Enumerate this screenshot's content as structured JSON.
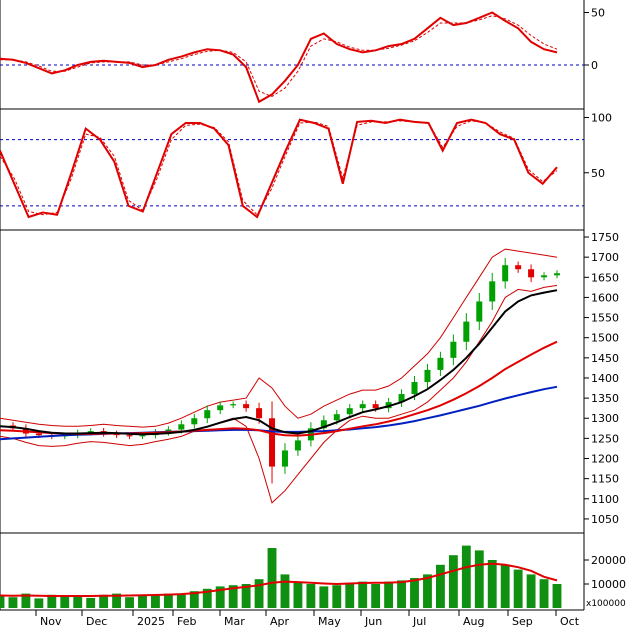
{
  "colors": {
    "price_up": "#00a000",
    "price_down": "#e00000",
    "bollinger": "#d00000",
    "ma20": "#000000",
    "ma50": "#e00000",
    "ma100": "#0020c0",
    "macd": "#e00000",
    "signal": "#e00000",
    "ref_line": "#0000c0",
    "volume": "#109010",
    "volume_ma": "#e00000"
  },
  "chart_data": [
    {
      "type": "line",
      "panel": "macd",
      "ylim": [
        -40,
        60
      ],
      "y_ticks": [
        0,
        50
      ],
      "reference_lines": [
        0
      ],
      "series": [
        {
          "values": [
            6,
            5,
            2,
            -3,
            -8,
            -5,
            0,
            3,
            4,
            3,
            2,
            -2,
            0,
            5,
            8,
            12,
            15,
            14,
            10,
            -2,
            -35,
            -28,
            -15,
            0,
            25,
            30,
            20,
            15,
            12,
            14,
            18,
            20,
            25,
            35,
            45,
            38,
            40,
            45,
            50,
            42,
            35,
            22,
            15,
            12
          ]
        },
        {
          "values": [
            5,
            5,
            3,
            -1,
            -6,
            -6,
            -2,
            2,
            3,
            3,
            3,
            0,
            0,
            3,
            6,
            10,
            13,
            14,
            12,
            3,
            -25,
            -30,
            -22,
            -6,
            18,
            25,
            22,
            17,
            14,
            14,
            16,
            19,
            23,
            31,
            40,
            40,
            40,
            43,
            47,
            44,
            38,
            28,
            20,
            15
          ]
        }
      ]
    },
    {
      "type": "line",
      "panel": "stochastic",
      "ylim": [
        0,
        105
      ],
      "y_ticks": [
        50,
        100
      ],
      "reference_lines": [
        20,
        80
      ],
      "series": [
        {
          "values": [
            70,
            40,
            10,
            14,
            12,
            50,
            90,
            80,
            60,
            20,
            15,
            50,
            85,
            95,
            95,
            90,
            75,
            20,
            10,
            40,
            70,
            98,
            95,
            90,
            40,
            96,
            97,
            95,
            98,
            96,
            95,
            70,
            95,
            98,
            95,
            85,
            80,
            50,
            40,
            55
          ]
        },
        {
          "values": [
            65,
            45,
            15,
            12,
            14,
            45,
            85,
            82,
            65,
            25,
            16,
            45,
            80,
            93,
            94,
            91,
            78,
            25,
            12,
            35,
            66,
            95,
            96,
            92,
            45,
            93,
            96,
            96,
            97,
            96,
            95,
            73,
            92,
            97,
            95,
            87,
            81,
            53,
            42,
            52
          ]
        }
      ]
    },
    {
      "type": "candlestick",
      "panel": "price",
      "ylim": [
        1020,
        1760
      ],
      "y_ticks": [
        1050,
        1100,
        1150,
        1200,
        1250,
        1300,
        1350,
        1400,
        1450,
        1500,
        1550,
        1600,
        1650,
        1700,
        1750
      ],
      "x_tick_labels": [
        "Nov",
        "Dec",
        "2025",
        "Feb",
        "Mar",
        "Apr",
        "May",
        "Jun",
        "Jul",
        "Aug",
        "Sep",
        "Oct"
      ],
      "close": [
        1282,
        1275,
        1262,
        1258,
        1255,
        1258,
        1264,
        1268,
        1262,
        1258,
        1255,
        1258,
        1265,
        1272,
        1285,
        1300,
        1320,
        1332,
        1335,
        1325,
        1300,
        1180,
        1220,
        1245,
        1275,
        1295,
        1310,
        1325,
        1335,
        1325,
        1340,
        1360,
        1390,
        1420,
        1450,
        1490,
        1540,
        1590,
        1640,
        1680,
        1670,
        1650,
        1655,
        1660
      ],
      "bollinger_upper": [
        1300,
        1295,
        1290,
        1285,
        1282,
        1280,
        1280,
        1282,
        1285,
        1282,
        1280,
        1278,
        1280,
        1288,
        1300,
        1315,
        1330,
        1340,
        1345,
        1350,
        1400,
        1375,
        1330,
        1300,
        1310,
        1330,
        1345,
        1360,
        1370,
        1370,
        1380,
        1400,
        1430,
        1460,
        1500,
        1550,
        1600,
        1650,
        1700,
        1720,
        1715,
        1710,
        1705,
        1700
      ],
      "bollinger_lower": [
        1255,
        1250,
        1240,
        1232,
        1230,
        1232,
        1238,
        1242,
        1240,
        1236,
        1232,
        1235,
        1242,
        1248,
        1255,
        1268,
        1280,
        1290,
        1300,
        1280,
        1200,
        1090,
        1120,
        1160,
        1200,
        1240,
        1270,
        1295,
        1305,
        1300,
        1300,
        1310,
        1320,
        1340,
        1370,
        1400,
        1440,
        1490,
        1540,
        1600,
        1620,
        1615,
        1625,
        1630
      ],
      "ma20": [
        1280,
        1278,
        1274,
        1268,
        1264,
        1262,
        1262,
        1263,
        1264,
        1263,
        1261,
        1260,
        1261,
        1263,
        1266,
        1271,
        1279,
        1289,
        1298,
        1303,
        1295,
        1275,
        1265,
        1262,
        1268,
        1278,
        1290,
        1303,
        1315,
        1322,
        1330,
        1340,
        1355,
        1372,
        1395,
        1420,
        1450,
        1485,
        1525,
        1565,
        1590,
        1605,
        1612,
        1618
      ],
      "ma50": [
        1270,
        1269,
        1267,
        1265,
        1263,
        1262,
        1261,
        1261,
        1262,
        1262,
        1262,
        1263,
        1264,
        1265,
        1267,
        1269,
        1271,
        1273,
        1275,
        1274,
        1270,
        1262,
        1258,
        1257,
        1259,
        1263,
        1268,
        1274,
        1280,
        1285,
        1292,
        1300,
        1310,
        1320,
        1332,
        1346,
        1362,
        1380,
        1400,
        1422,
        1440,
        1458,
        1475,
        1490
      ],
      "ma100": [
        1248,
        1250,
        1252,
        1254,
        1256,
        1258,
        1259,
        1260,
        1261,
        1262,
        1263,
        1264,
        1265,
        1266,
        1267,
        1268,
        1269,
        1270,
        1271,
        1271,
        1270,
        1267,
        1266,
        1266,
        1267,
        1268,
        1270,
        1272,
        1275,
        1278,
        1282,
        1287,
        1293,
        1300,
        1307,
        1315,
        1323,
        1331,
        1340,
        1349,
        1357,
        1365,
        1372,
        1378
      ]
    },
    {
      "type": "bar",
      "panel": "volume",
      "ylabel": "x100000",
      "ylim": [
        0,
        30000
      ],
      "y_ticks": [
        10000,
        20000
      ],
      "values": [
        5000,
        4500,
        6000,
        4000,
        5500,
        5000,
        4800,
        4200,
        5500,
        6000,
        4500,
        5000,
        5200,
        6000,
        5500,
        7000,
        8000,
        9000,
        9500,
        10000,
        12000,
        25000,
        14000,
        11000,
        10000,
        9000,
        9500,
        10500,
        11000,
        10000,
        11000,
        11500,
        12500,
        14000,
        18000,
        22000,
        26000,
        24000,
        20000,
        18000,
        16000,
        14000,
        12000,
        10000
      ],
      "ma": [
        5200,
        5100,
        5200,
        5100,
        5000,
        5000,
        5000,
        5000,
        5100,
        5100,
        5200,
        5300,
        5400,
        5600,
        5800,
        6200,
        6800,
        7500,
        8200,
        8800,
        9500,
        10500,
        11000,
        10800,
        10500,
        10200,
        10000,
        10200,
        10400,
        10500,
        10600,
        10800,
        11500,
        12500,
        14000,
        15500,
        17000,
        18000,
        18500,
        18000,
        17000,
        15500,
        13000,
        11500
      ]
    }
  ]
}
